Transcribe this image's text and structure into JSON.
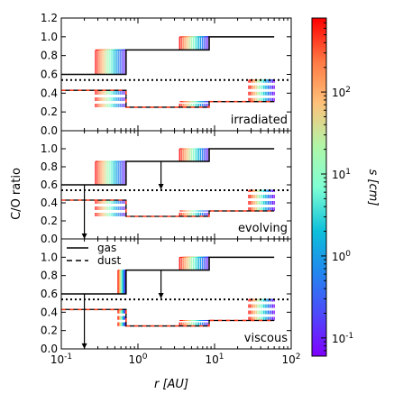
{
  "chart_data": {
    "type": "line",
    "ylabel": "C/O ratio",
    "xlabel": "r [AU]",
    "x_scale": "log",
    "xlim": [
      0.1,
      100
    ],
    "ylim": [
      0.0,
      1.2
    ],
    "x_ticks": [
      {
        "value": 0.1,
        "label": "10",
        "exp": "-1"
      },
      {
        "value": 1,
        "label": "10",
        "exp": "0"
      },
      {
        "value": 10,
        "label": "10",
        "exp": "1"
      },
      {
        "value": 100,
        "label": "10",
        "exp": "2"
      }
    ],
    "y_ticks_top": [
      "0.0",
      "0.2",
      "0.4",
      "0.6",
      "0.8",
      "1.0",
      "1.2"
    ],
    "y_ticks_lower": [
      "0.0",
      "0.2",
      "0.4",
      "0.6",
      "0.8",
      "1.0"
    ],
    "y_tick_values": [
      0.0,
      0.2,
      0.4,
      0.6,
      0.8,
      1.0,
      1.2
    ],
    "stellar_co": 0.54,
    "legend": [
      {
        "name": "gas",
        "style": "solid"
      },
      {
        "name": "dust",
        "style": "dashed"
      }
    ],
    "colorbar": {
      "label": "s [cm]",
      "scale": "log",
      "range": [
        0.06,
        800
      ],
      "ticks": [
        {
          "value": 0.1,
          "label": "10",
          "exp": "-1"
        },
        {
          "value": 1,
          "label": "10",
          "exp": "0"
        },
        {
          "value": 10,
          "label": "10",
          "exp": "1"
        },
        {
          "value": 100,
          "label": "10",
          "exp": "2"
        }
      ]
    },
    "panels": [
      {
        "label": "irradiated",
        "gas": {
          "x": [
            0.1,
            0.7,
            0.7,
            8.5,
            8.5,
            60
          ],
          "y": [
            0.6,
            0.6,
            0.86,
            0.86,
            1.0,
            1.0
          ]
        },
        "dust": {
          "x": [
            0.1,
            0.7,
            0.7,
            8.5,
            8.5,
            60
          ],
          "y": [
            0.43,
            0.43,
            0.25,
            0.25,
            0.31,
            0.31
          ]
        },
        "fans": [
          {
            "x0": 0.28,
            "x1": 0.7,
            "gas_high": 0.86,
            "gas_low": 0.6,
            "dust_high": 0.43,
            "dust_low": 0.25
          },
          {
            "x0": 3.5,
            "x1": 8.5,
            "gas_high": 1.0,
            "gas_low": 0.86,
            "dust_high": 0.31,
            "dust_low": 0.25
          },
          {
            "x0": 28,
            "x1": 60,
            "gas_high": 0.54,
            "gas_low": 0.54,
            "dust_high": 0.54,
            "dust_low": 0.31
          }
        ],
        "arrows": []
      },
      {
        "label": "evolving",
        "gas": {
          "x": [
            0.1,
            0.7,
            0.7,
            8.5,
            8.5,
            60
          ],
          "y": [
            0.6,
            0.6,
            0.86,
            0.86,
            1.0,
            1.0
          ]
        },
        "dust": {
          "x": [
            0.1,
            0.7,
            0.7,
            8.5,
            8.5,
            60
          ],
          "y": [
            0.43,
            0.43,
            0.25,
            0.25,
            0.31,
            0.31
          ]
        },
        "fans": [
          {
            "x0": 0.28,
            "x1": 0.7,
            "gas_high": 0.86,
            "gas_low": 0.6,
            "dust_high": 0.43,
            "dust_low": 0.25
          },
          {
            "x0": 3.5,
            "x1": 8.5,
            "gas_high": 1.0,
            "gas_low": 0.86,
            "dust_high": 0.31,
            "dust_low": 0.25
          },
          {
            "x0": 28,
            "x1": 60,
            "gas_high": 0.54,
            "gas_low": 0.54,
            "dust_high": 0.54,
            "dust_low": 0.31
          }
        ],
        "arrows": [
          {
            "x": 2.0,
            "y_from": 0.86,
            "y_to": 0.6
          },
          {
            "x": 0.2,
            "y_from": 0.6,
            "y_to": 0.05
          }
        ]
      },
      {
        "label": "viscous",
        "gas": {
          "x": [
            0.1,
            0.7,
            0.7,
            8.5,
            8.5,
            60
          ],
          "y": [
            0.6,
            0.6,
            0.86,
            0.86,
            1.0,
            1.0
          ]
        },
        "dust": {
          "x": [
            0.1,
            0.7,
            0.7,
            8.5,
            8.5,
            60
          ],
          "y": [
            0.43,
            0.43,
            0.25,
            0.25,
            0.31,
            0.31
          ]
        },
        "fans": [
          {
            "x0": 0.55,
            "x1": 0.7,
            "gas_high": 0.86,
            "gas_low": 0.6,
            "dust_high": 0.43,
            "dust_low": 0.25
          },
          {
            "x0": 3.5,
            "x1": 8.5,
            "gas_high": 1.0,
            "gas_low": 0.86,
            "dust_high": 0.31,
            "dust_low": 0.25
          },
          {
            "x0": 28,
            "x1": 60,
            "gas_high": 0.54,
            "gas_low": 0.54,
            "dust_high": 0.54,
            "dust_low": 0.31
          }
        ],
        "arrows": [
          {
            "x": 2.0,
            "y_from": 0.86,
            "y_to": 0.6
          },
          {
            "x": 0.2,
            "y_from": 0.6,
            "y_to": 0.05
          }
        ]
      }
    ]
  }
}
